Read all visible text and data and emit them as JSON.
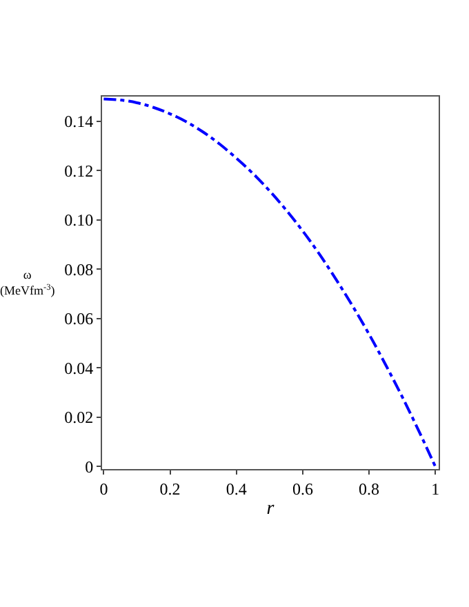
{
  "chart_data": {
    "type": "line",
    "xlabel": "r",
    "ylabel": "ω\n(MeVfm$^{-3}$)",
    "x": [
      0,
      0.05,
      0.1,
      0.15,
      0.2,
      0.25,
      0.3,
      0.35,
      0.4,
      0.45,
      0.5,
      0.55,
      0.6,
      0.65,
      0.7,
      0.75,
      0.8,
      0.85,
      0.9,
      0.95,
      1
    ],
    "series": [
      {
        "color": "#0000ff",
        "values": [
          0.149,
          0.1486,
          0.1475,
          0.1456,
          0.143,
          0.1397,
          0.1356,
          0.1307,
          0.125,
          0.1188,
          0.1118,
          0.104,
          0.0955,
          0.0862,
          0.076,
          0.0652,
          0.0537,
          0.0413,
          0.0283,
          0.0145,
          0
        ]
      }
    ],
    "xlim": [
      -0.005,
      1.01
    ],
    "ylim": [
      -0.001,
      0.15
    ],
    "xticks": [
      0,
      0.2,
      0.4,
      0.6,
      0.8,
      1
    ],
    "yticks": [
      0,
      0.02,
      0.04,
      0.06,
      0.08,
      {
        "value": 0.1,
        "label": "0.10"
      },
      0.12,
      0.14
    ],
    "line_style": "dashdot",
    "marker": "none"
  }
}
